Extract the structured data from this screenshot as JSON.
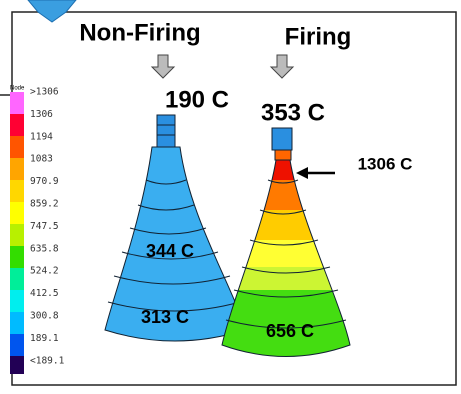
{
  "headers": {
    "non_firing": "Non-Firing",
    "firing": "Firing"
  },
  "legend": {
    "title": "Node",
    "labels": [
      ">1306",
      "1306",
      "1194",
      "1083",
      "970.9",
      "859.2",
      "747.5",
      "635.8",
      "524.2",
      "412.5",
      "300.8",
      "189.1",
      "<189.1"
    ]
  },
  "annotations": {
    "non_firing_top": "190 C",
    "firing_top": "353 C",
    "firing_throat": "1306 C",
    "non_firing_mid": "344 C",
    "non_firing_base": "313 C",
    "firing_base": "656 C"
  }
}
